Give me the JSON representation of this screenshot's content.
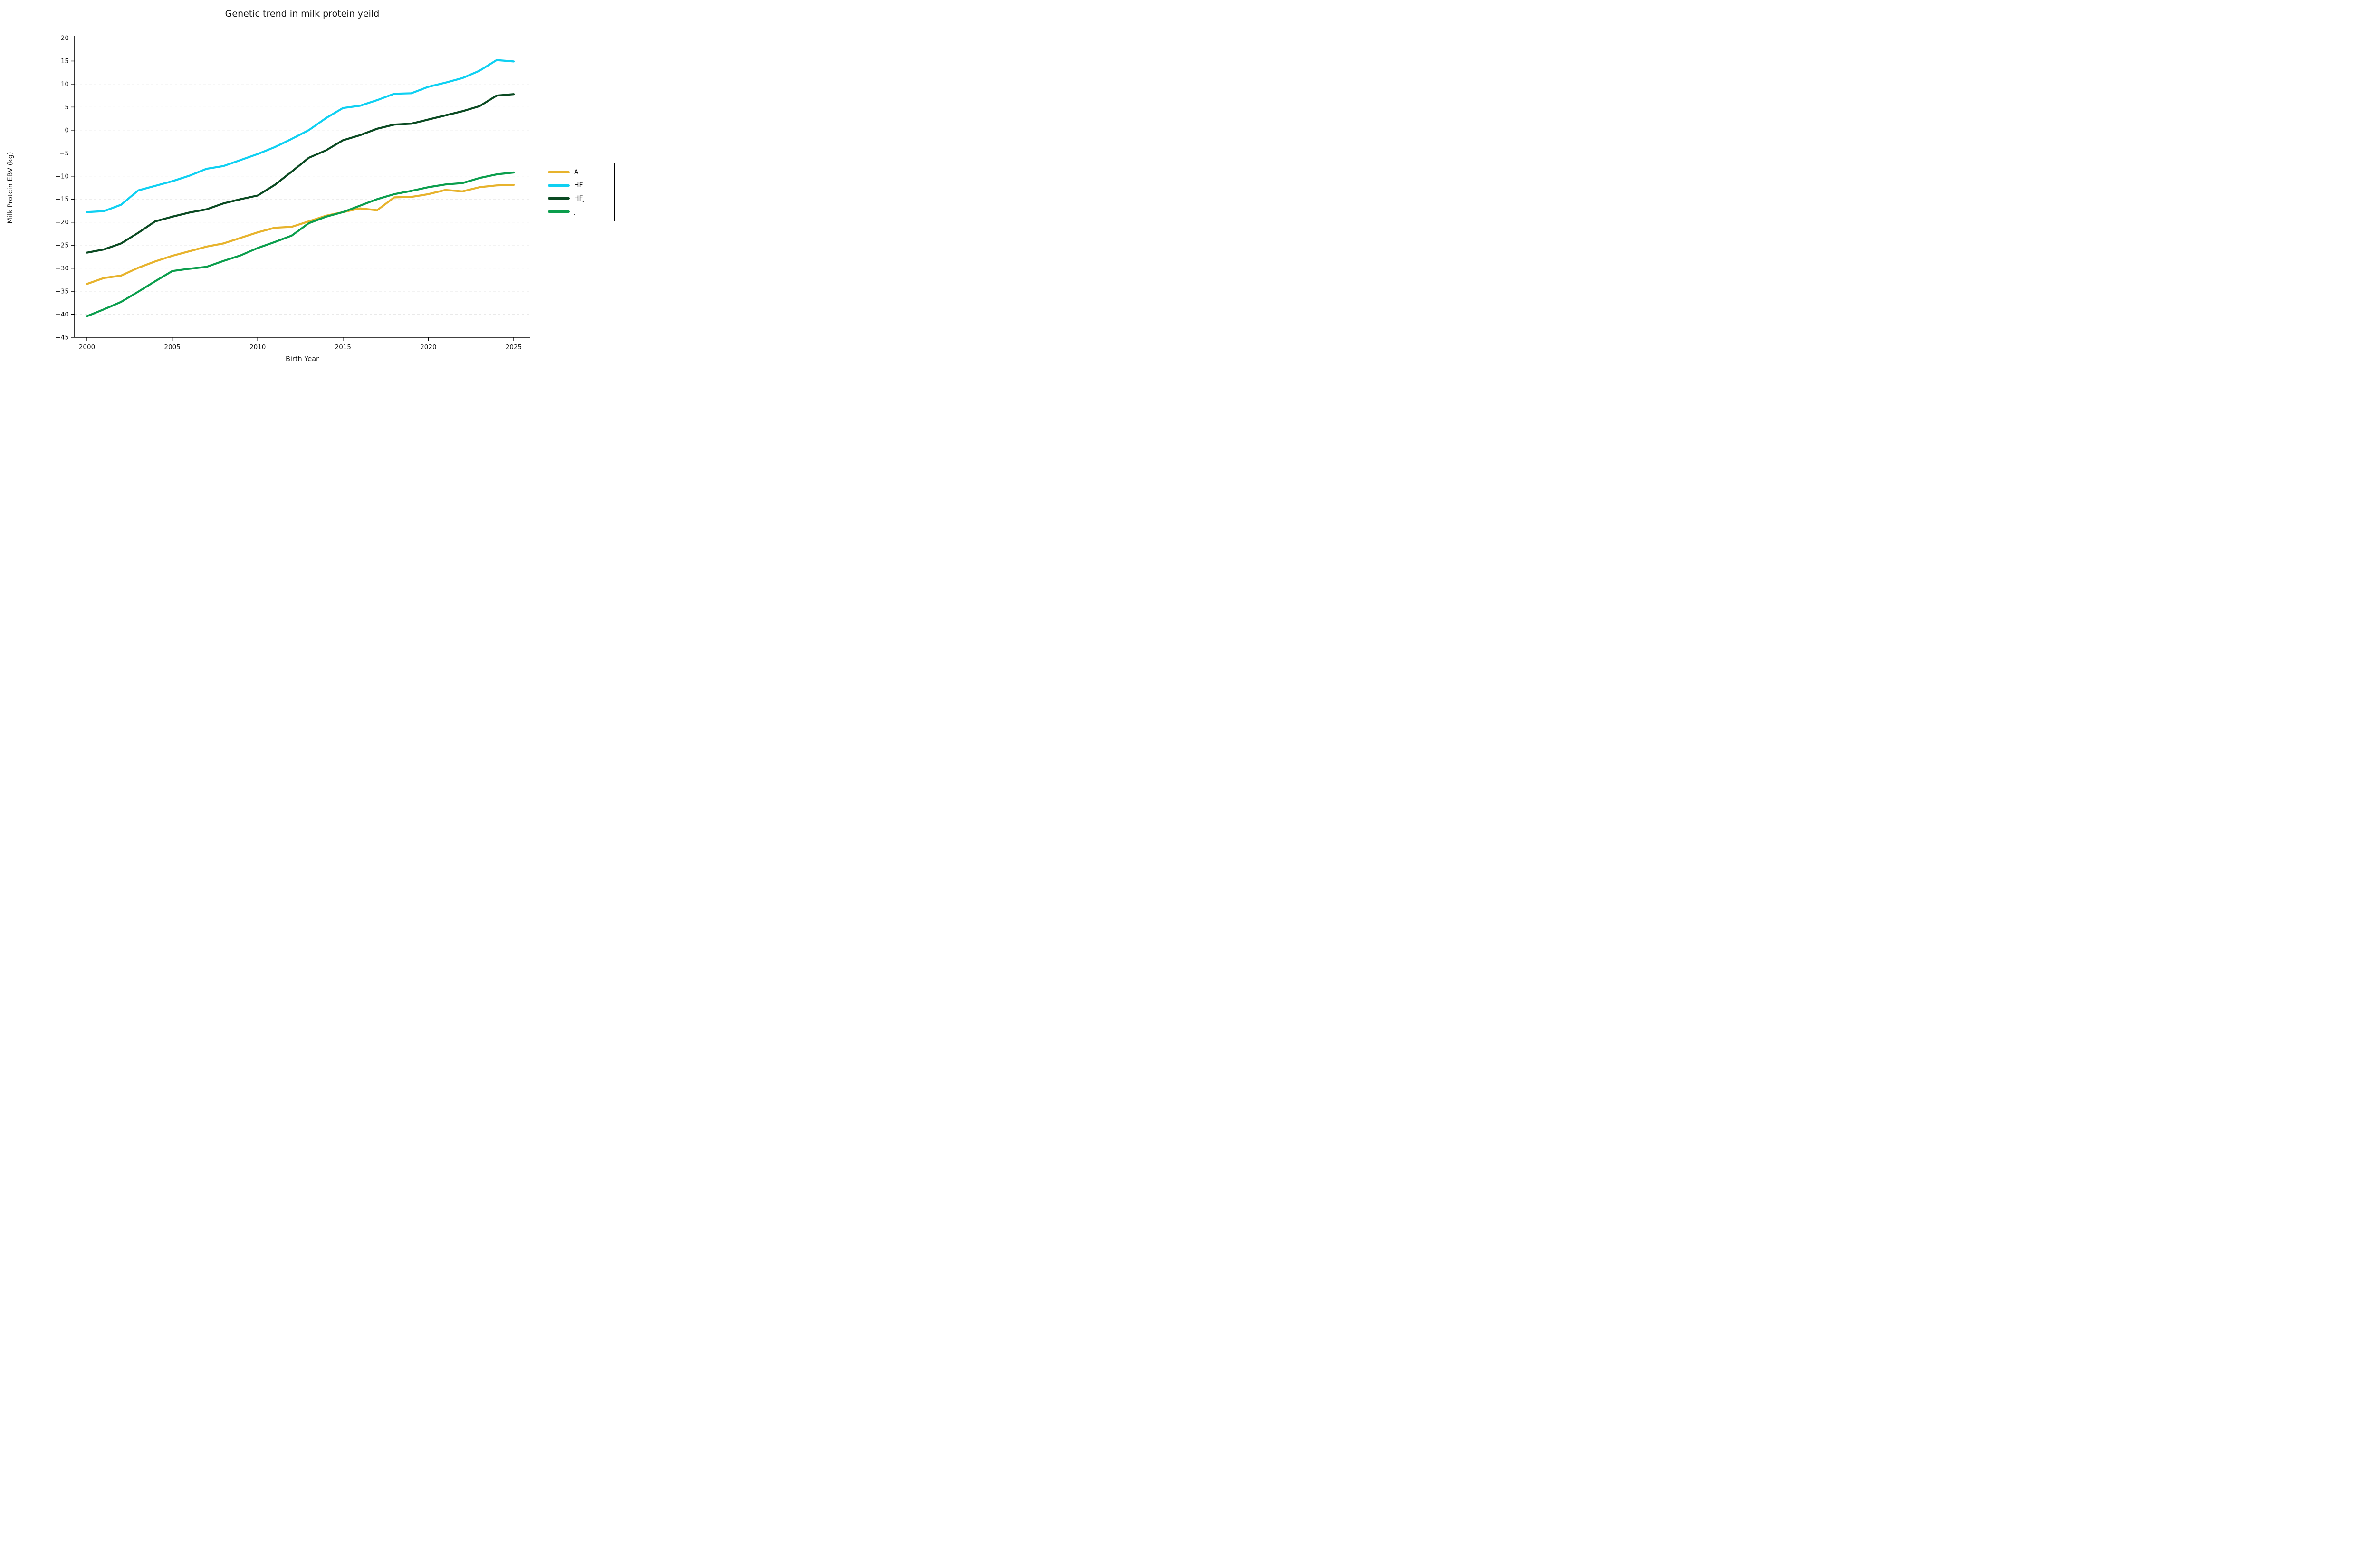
{
  "title": "Genetic trend in milk protein yeild",
  "colors": {
    "background": "#ffffff",
    "axis": "#000000",
    "gridline": "#e9e9e9",
    "text": "#111111"
  },
  "chart_data": {
    "type": "line",
    "title": "Genetic trend in milk protein yeild",
    "xlabel": "Birth Year",
    "ylabel": "Milk Protein EBV (kg)",
    "xlim": [
      2000,
      2025
    ],
    "ylim": [
      -45,
      20
    ],
    "xticks": [
      2000,
      2005,
      2010,
      2015,
      2020,
      2025
    ],
    "yticks": [
      20,
      15,
      10,
      5,
      0,
      -5,
      -10,
      -15,
      -20,
      -25,
      -30,
      -35,
      -40,
      -45
    ],
    "grid": "horizontal-dashed-faint",
    "legend_position": "center-right-outside",
    "x": [
      2000,
      2001,
      2002,
      2003,
      2004,
      2005,
      2006,
      2007,
      2008,
      2009,
      2010,
      2011,
      2012,
      2013,
      2014,
      2015,
      2016,
      2017,
      2018,
      2019,
      2020,
      2021,
      2022,
      2023,
      2024,
      2025
    ],
    "series": [
      {
        "name": "A",
        "color": "#e7b32d",
        "values": [
          -33.4,
          -32.1,
          -31.6,
          -29.9,
          -28.5,
          -27.3,
          -26.3,
          -25.3,
          -24.6,
          -23.4,
          -22.2,
          -21.2,
          -21.0,
          -19.8,
          -18.6,
          -17.8,
          -17.0,
          -17.4,
          -14.6,
          -14.5,
          -13.9,
          -13.0,
          -13.3,
          -12.4,
          -12.0,
          -11.9
        ]
      },
      {
        "name": "HF",
        "color": "#0fd0f2",
        "values": [
          -17.8,
          -17.6,
          -16.2,
          -13.1,
          -12.1,
          -11.1,
          -9.9,
          -8.4,
          -7.8,
          -6.5,
          -5.2,
          -3.7,
          -1.9,
          0.0,
          2.6,
          4.8,
          5.3,
          6.5,
          7.9,
          8.0,
          9.4,
          10.3,
          11.3,
          12.9,
          15.2,
          14.9
        ]
      },
      {
        "name": "HFJ",
        "color": "#0a4a22",
        "values": [
          -26.6,
          -25.9,
          -24.6,
          -22.3,
          -19.8,
          -18.8,
          -17.9,
          -17.2,
          -15.9,
          -15.0,
          -14.2,
          -11.9,
          -9.0,
          -6.0,
          -4.4,
          -2.2,
          -1.1,
          0.3,
          1.2,
          1.4,
          2.3,
          3.2,
          4.1,
          5.2,
          7.5,
          7.8
        ]
      },
      {
        "name": "J",
        "color": "#0b9e4d",
        "values": [
          -40.4,
          -38.9,
          -37.3,
          -35.1,
          -32.8,
          -30.6,
          -30.1,
          -29.7,
          -28.4,
          -27.2,
          -25.6,
          -24.3,
          -22.9,
          -20.2,
          -18.8,
          -17.8,
          -16.4,
          -15.0,
          -13.9,
          -13.2,
          -12.4,
          -11.8,
          -11.5,
          -10.4,
          -9.6,
          -9.2
        ]
      }
    ]
  }
}
